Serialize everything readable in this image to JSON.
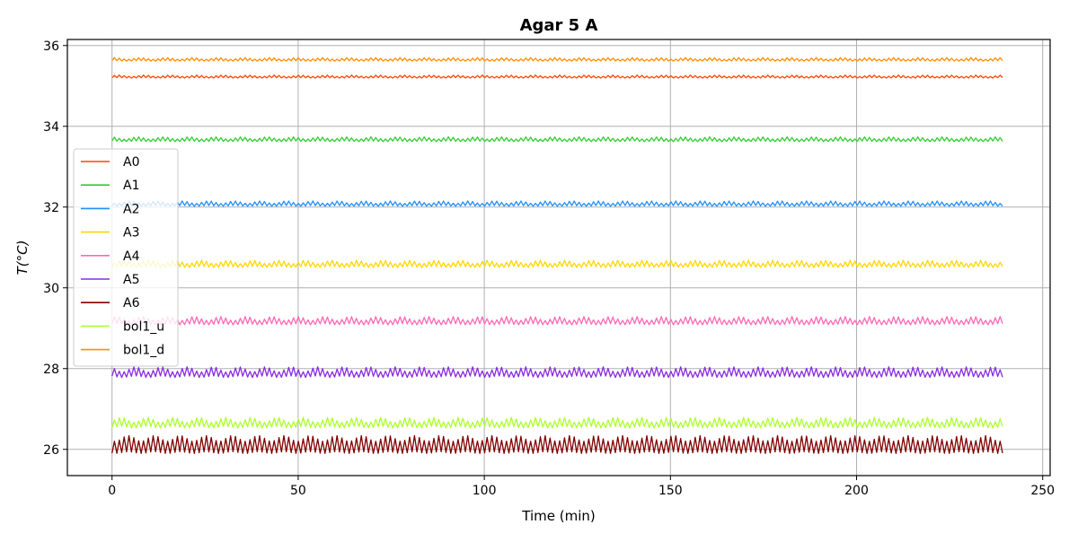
{
  "chart_data": {
    "type": "line",
    "title": "Agar 5 A",
    "xlabel": "Time (min)",
    "ylabel": "T(°C)",
    "xlim": [
      -12,
      252
    ],
    "ylim": [
      25.35,
      36.15
    ],
    "x_ticks": [
      0,
      50,
      100,
      150,
      200,
      250
    ],
    "y_ticks": [
      26,
      28,
      30,
      32,
      34,
      36
    ],
    "grid": true,
    "legend_position": "center-left",
    "x_range": [
      0,
      239.5
    ],
    "series": [
      {
        "name": "A0",
        "color": "#ff4500",
        "base": 35.2,
        "amp": 0.05,
        "low": 0.0
      },
      {
        "name": "A1",
        "color": "#32cd32",
        "base": 33.63,
        "amp": 0.08,
        "low": 0.0
      },
      {
        "name": "A2",
        "color": "#1e90ff",
        "base": 32.03,
        "amp": 0.09,
        "low": 0.0
      },
      {
        "name": "A3",
        "color": "#ffd700",
        "base": 30.52,
        "amp": 0.12,
        "low": 0.0
      },
      {
        "name": "A4",
        "color": "#ff69b4",
        "base": 29.1,
        "amp": 0.14,
        "low": 0.0
      },
      {
        "name": "A5",
        "color": "#8a2be2",
        "base": 27.8,
        "amp": 0.18,
        "low": 0.0
      },
      {
        "name": "A6",
        "color": "#800000",
        "base": 26.07,
        "amp": 0.2,
        "low": 0.15
      },
      {
        "name": "bol1_u",
        "color": "#adff2f",
        "base": 26.55,
        "amp": 0.18,
        "low": 0.0
      },
      {
        "name": "bol1_d",
        "color": "#ff8c00",
        "base": 35.62,
        "amp": 0.06,
        "low": 0.0
      }
    ]
  }
}
